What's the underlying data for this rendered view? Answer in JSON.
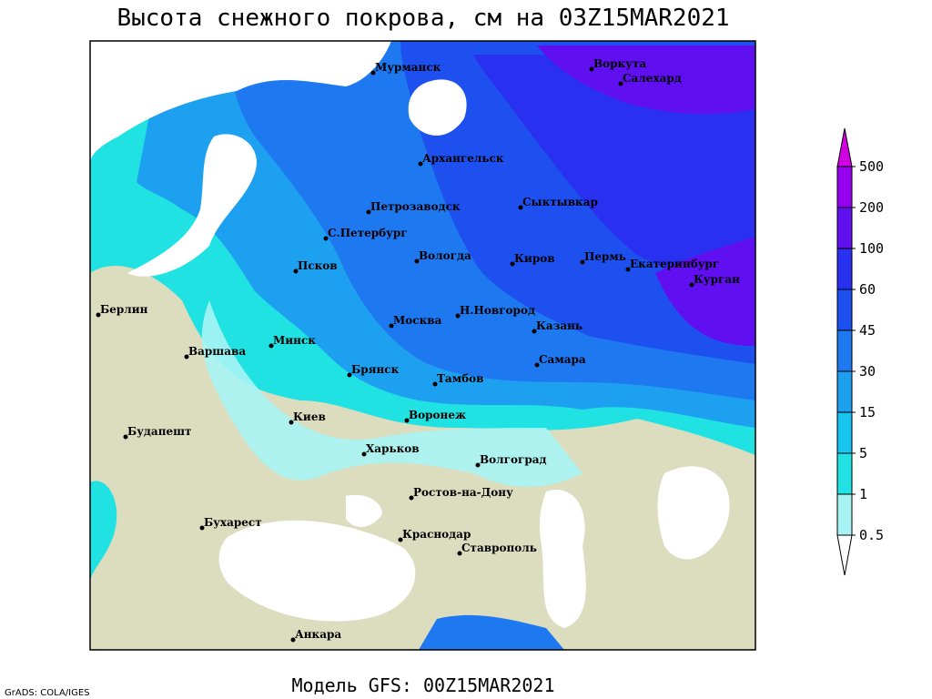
{
  "title": "Высота снежного покрова, см на 03Z15MAR2021",
  "footer": "Модель GFS: 00Z15MAR2021",
  "credit": "GrADS: COLA/IGES",
  "cities": [
    "Мурманск",
    "Воркута",
    "Салехард",
    "Архангельск",
    "Петрозаводск",
    "Сыктывкар",
    "С.Петербург",
    "Вологда",
    "Киров",
    "Пермь",
    "Екатеринбург",
    "Курган",
    "Псков",
    "Берлин",
    "Н.Новгород",
    "Москва",
    "Казань",
    "Минск",
    "Варшава",
    "Самара",
    "Брянск",
    "Тамбов",
    "Киев",
    "Воронеж",
    "Будапешт",
    "Харьков",
    "Волгоград",
    "Ростов-на-Дону",
    "Бухарест",
    "Краснодар",
    "Ставрополь",
    "Анкара"
  ],
  "legend": {
    "levels": [
      0.5,
      1,
      5,
      15,
      30,
      45,
      60,
      100,
      200,
      500
    ],
    "colors": [
      "#ffffff",
      "#a8f4f4",
      "#20e2e2",
      "#18c4f0",
      "#1ea0f0",
      "#1e78f0",
      "#1e50f0",
      "#2a30f0",
      "#6010f0",
      "#9800f0",
      "#d000e0"
    ]
  }
}
